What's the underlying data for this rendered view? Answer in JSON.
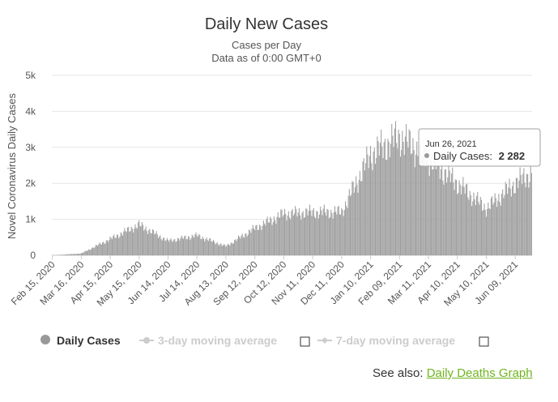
{
  "chart_data": {
    "type": "bar",
    "title": "Daily New Cases",
    "subtitle_lines": [
      "Cases per Day",
      "Data as of 0:00 GMT+0"
    ],
    "ylabel": "Novel Coronavirus Daily Cases",
    "xlabel": "",
    "ylim": [
      0,
      5000
    ],
    "y_ticks": [
      "0",
      "1k",
      "2k",
      "3k",
      "4k",
      "5k"
    ],
    "y_tick_values": [
      0,
      1000,
      2000,
      3000,
      4000,
      5000
    ],
    "x_ticks": [
      "Feb 15, 2020",
      "Mar 16, 2020",
      "Apr 15, 2020",
      "May 15, 2020",
      "Jun 14, 2020",
      "Jul 14, 2020",
      "Aug 13, 2020",
      "Sep 12, 2020",
      "Oct 12, 2020",
      "Nov 11, 2020",
      "Dec 11, 2020",
      "Jan 10, 2021",
      "Feb 09, 2021",
      "Mar 11, 2021",
      "Apr 10, 2021",
      "May 10, 2021",
      "Jun 09, 2021"
    ],
    "grid": true,
    "bar_color": "#a0a0a0",
    "series": [
      {
        "name": "Daily Cases",
        "dates": [
          "Feb 15, 2020",
          "Mar 16, 2020",
          "Apr 15, 2020",
          "May 15, 2020",
          "Jun 14, 2020",
          "Jul 14, 2020",
          "Aug 13, 2020",
          "Sep 12, 2020",
          "Oct 12, 2020",
          "Nov 11, 2020",
          "Dec 11, 2020",
          "Jan 10, 2021",
          "Feb 09, 2021",
          "Mar 11, 2021",
          "Apr 10, 2021",
          "May 10, 2021",
          "Jun 09, 2021",
          "Jun 26, 2021"
        ],
        "values": [
          0,
          50,
          450,
          850,
          400,
          550,
          250,
          750,
          1150,
          1200,
          1200,
          2800,
          3300,
          2700,
          2000,
          1300,
          2000,
          2282
        ]
      }
    ]
  },
  "tooltip": {
    "date": "Jun 26, 2021",
    "series_label": "Daily Cases:",
    "value_text": "2 282"
  },
  "legend": {
    "items": [
      {
        "label": "Daily Cases",
        "color": "#999999",
        "active": true
      },
      {
        "label": "3-day moving average",
        "color": "#cccccc",
        "active": false
      },
      {
        "label": "7-day moving average",
        "color": "#cccccc",
        "active": false
      }
    ]
  },
  "footer": {
    "prefix": "See also:",
    "link": "Daily Deaths Graph"
  }
}
